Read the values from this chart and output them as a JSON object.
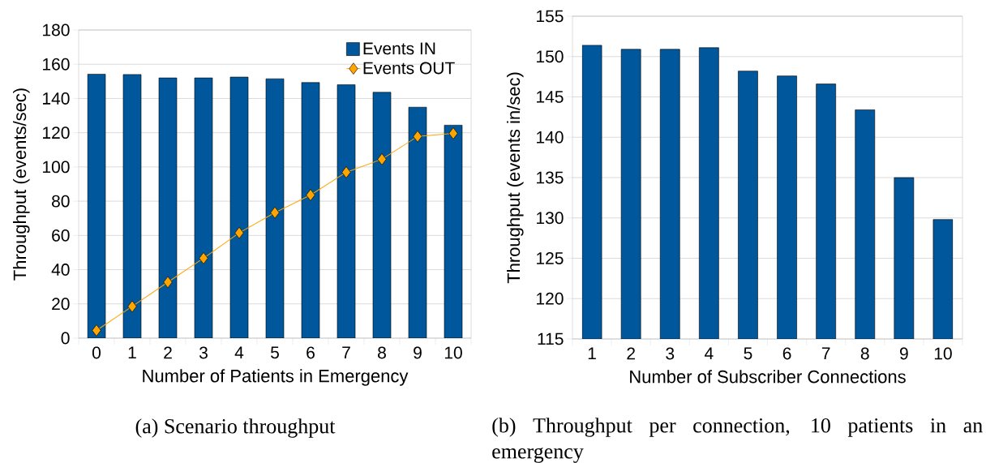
{
  "chart_data": [
    {
      "type": "bar",
      "xlabel": "Number of Patients in Emergency",
      "ylabel": "Throughput (events/sec)",
      "categories": [
        "0",
        "1",
        "2",
        "3",
        "4",
        "5",
        "6",
        "7",
        "8",
        "9",
        "10"
      ],
      "series": [
        {
          "name": "Events IN",
          "type": "bar",
          "color": "#00579c",
          "values": [
            154.2,
            154,
            152,
            152,
            152.5,
            151.5,
            149.3,
            148,
            143.6,
            134.9,
            124.4
          ]
        },
        {
          "name": "Events OUT",
          "type": "line",
          "color": "#ffa500",
          "values": [
            4.5,
            18.5,
            32.7,
            46.7,
            61.5,
            73.3,
            83.6,
            96.9,
            104.5,
            117.8,
            119.6
          ]
        }
      ],
      "ylim": [
        0,
        180
      ],
      "yticks": [
        0,
        20,
        40,
        60,
        80,
        100,
        120,
        140,
        160,
        180
      ],
      "grid": "y",
      "legend": "top right",
      "marker": "diamond",
      "annotations": [
        "(a) Scenario throughput"
      ]
    },
    {
      "type": "bar",
      "xlabel": "Number of Subscriber Connections",
      "ylabel": "Throughput (events in/sec)",
      "categories": [
        "1",
        "2",
        "3",
        "4",
        "5",
        "6",
        "7",
        "8",
        "9",
        "10"
      ],
      "values": [
        151.4,
        150.9,
        150.9,
        151.1,
        148.2,
        147.6,
        146.6,
        143.4,
        135.0,
        129.8
      ],
      "color": "#00579c",
      "ylim": [
        115,
        155
      ],
      "yticks": [
        115,
        120,
        125,
        130,
        135,
        140,
        145,
        150,
        155
      ],
      "grid": "y",
      "annotations": [
        "(b) Throughput per connection, 10 patients in an emergency"
      ]
    }
  ]
}
